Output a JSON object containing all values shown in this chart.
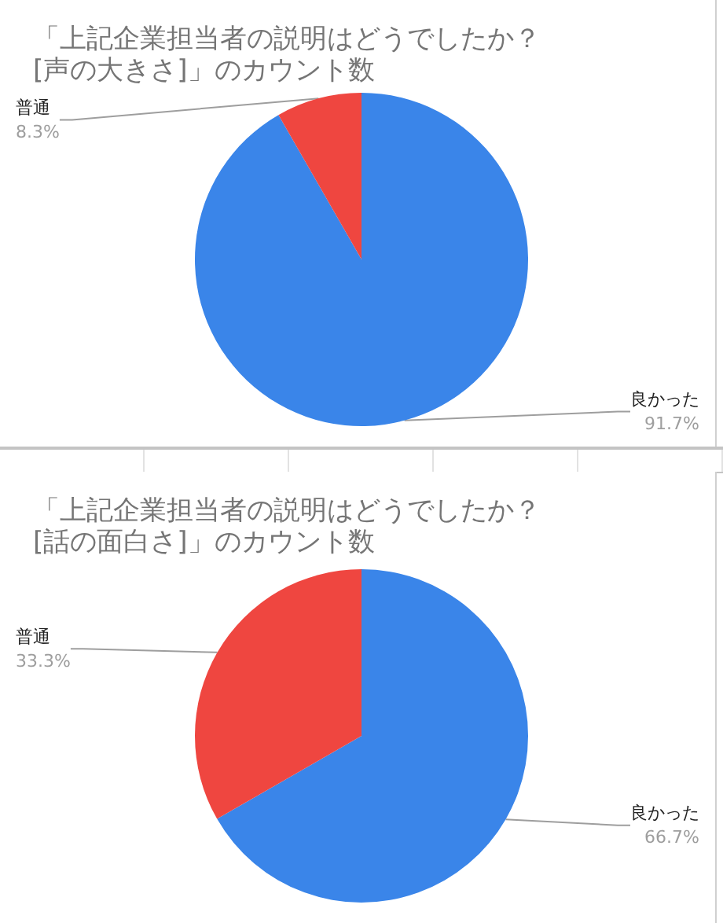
{
  "chart_data": [
    {
      "type": "pie",
      "title": "「上記企業担当者の説明はどうでしたか？\n[声の大きさ]」のカウント数",
      "categories": [
        "良かった",
        "普通"
      ],
      "values": [
        91.7,
        8.3
      ],
      "colors": [
        "#3a85e9",
        "#ef4640"
      ],
      "value_labels": [
        "91.7%",
        "8.3%"
      ]
    },
    {
      "type": "pie",
      "title": "「上記企業担当者の説明はどうでしたか？\n[話の面白さ]」のカウント数",
      "categories": [
        "良かった",
        "普通"
      ],
      "values": [
        66.7,
        33.3
      ],
      "colors": [
        "#3a85e9",
        "#ef4640"
      ],
      "value_labels": [
        "66.7%",
        "33.3%"
      ]
    }
  ]
}
